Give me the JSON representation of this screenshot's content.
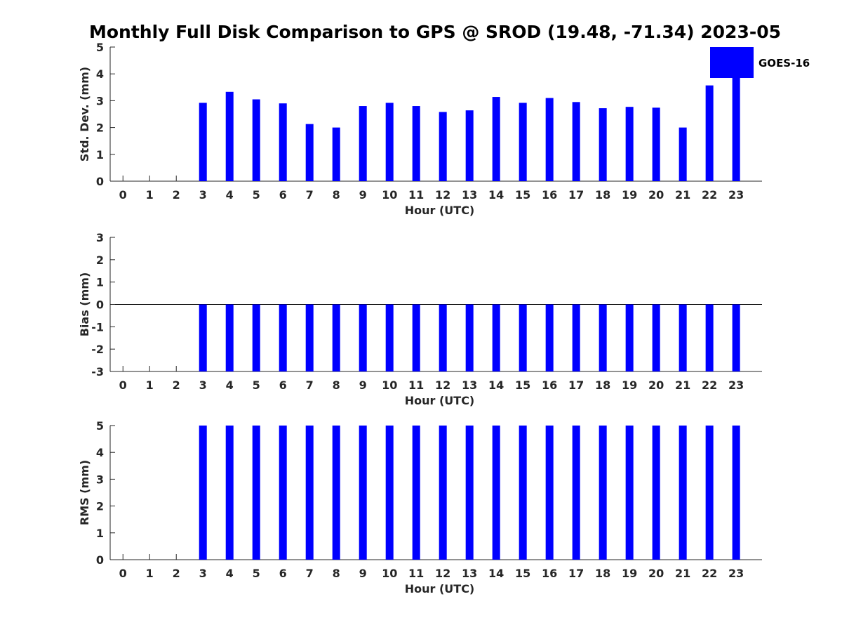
{
  "title": "Monthly Full Disk Comparison to GPS @ SROD (19.48, -71.34) 2023-05",
  "legend": {
    "label": "GOES-16",
    "color": "#0000ff"
  },
  "chart_data": [
    {
      "type": "bar",
      "xlabel": "Hour (UTC)",
      "ylabel": "Std. Dev. (mm)",
      "ylim": [
        0,
        5
      ],
      "yticks": [
        "0",
        "1",
        "2",
        "3",
        "4",
        "5"
      ],
      "categories": [
        "0",
        "1",
        "2",
        "3",
        "4",
        "5",
        "6",
        "7",
        "8",
        "9",
        "10",
        "11",
        "12",
        "13",
        "14",
        "15",
        "16",
        "17",
        "18",
        "19",
        "20",
        "21",
        "22",
        "23"
      ],
      "series": [
        {
          "name": "GOES-16",
          "values": [
            null,
            null,
            null,
            2.92,
            3.33,
            3.05,
            2.9,
            2.13,
            2.0,
            2.8,
            2.92,
            2.8,
            2.58,
            2.64,
            3.14,
            2.92,
            3.1,
            2.95,
            2.72,
            2.77,
            2.74,
            2.0,
            3.57,
            4.0
          ]
        }
      ]
    },
    {
      "type": "bar",
      "xlabel": "Hour (UTC)",
      "ylabel": "Bias (mm)",
      "ylim": [
        -3,
        3
      ],
      "yticks": [
        "-3",
        "-2",
        "-1",
        "0",
        "1",
        "2",
        "3"
      ],
      "categories": [
        "0",
        "1",
        "2",
        "3",
        "4",
        "5",
        "6",
        "7",
        "8",
        "9",
        "10",
        "11",
        "12",
        "13",
        "14",
        "15",
        "16",
        "17",
        "18",
        "19",
        "20",
        "21",
        "22",
        "23"
      ],
      "series": [
        {
          "name": "GOES-16",
          "values": [
            null,
            null,
            null,
            -3,
            -3,
            -3,
            -3,
            -3,
            -3,
            -3,
            -3,
            -3,
            -3,
            -3,
            -3,
            -3,
            -3,
            -3,
            -3,
            -3,
            -3,
            -3,
            -3,
            -3
          ]
        }
      ]
    },
    {
      "type": "bar",
      "xlabel": "Hour (UTC)",
      "ylabel": "RMS (mm)",
      "ylim": [
        0,
        5
      ],
      "yticks": [
        "0",
        "1",
        "2",
        "3",
        "4",
        "5"
      ],
      "categories": [
        "0",
        "1",
        "2",
        "3",
        "4",
        "5",
        "6",
        "7",
        "8",
        "9",
        "10",
        "11",
        "12",
        "13",
        "14",
        "15",
        "16",
        "17",
        "18",
        "19",
        "20",
        "21",
        "22",
        "23"
      ],
      "series": [
        {
          "name": "GOES-16",
          "values": [
            null,
            null,
            null,
            5,
            5,
            5,
            5,
            5,
            5,
            5,
            5,
            5,
            5,
            5,
            5,
            5,
            5,
            5,
            5,
            5,
            5,
            5,
            5,
            5
          ]
        }
      ]
    }
  ]
}
